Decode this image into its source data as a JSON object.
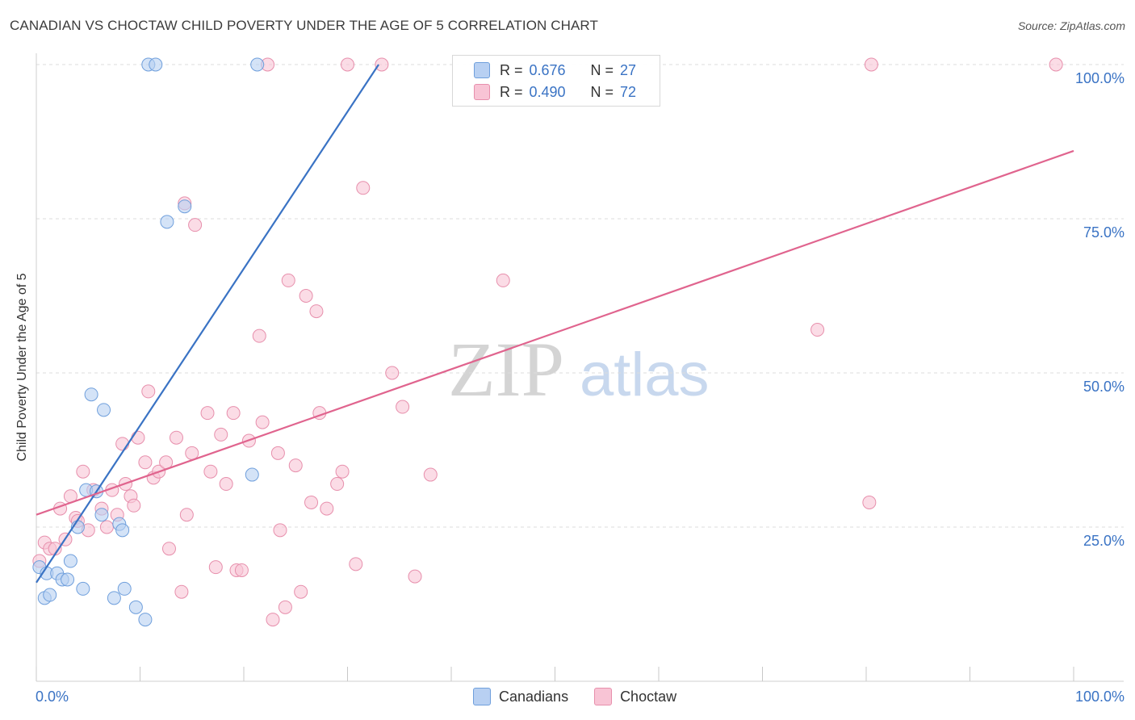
{
  "title": "CANADIAN VS CHOCTAW CHILD POVERTY UNDER THE AGE OF 5 CORRELATION CHART",
  "source": "Source: ZipAtlas.com",
  "watermark": {
    "zip": "ZIP",
    "atlas": "atlas"
  },
  "colors": {
    "canadian_fill": "#b8d0f2",
    "canadian_stroke": "#6f9fdc",
    "canadian_line": "#3a73c4",
    "choctaw_fill": "#f8c4d5",
    "choctaw_stroke": "#e78fac",
    "choctaw_line": "#e0648e",
    "axis_text": "#3a73c4",
    "grid": "#dcdcdc"
  },
  "legend": {
    "rows": [
      {
        "r_label": "R =",
        "r_value": "0.676",
        "n_label": "N =",
        "n_value": "27"
      },
      {
        "r_label": "R =",
        "r_value": "0.490",
        "n_label": "N =",
        "n_value": "72"
      }
    ],
    "series_names": [
      "Canadians",
      "Choctaw"
    ]
  },
  "chart_data": {
    "type": "scatter",
    "title": "CANADIAN VS CHOCTAW CHILD POVERTY UNDER THE AGE OF 5 CORRELATION CHART",
    "xlabel": "",
    "ylabel": "Child Poverty Under the Age of 5",
    "xlim": [
      0,
      100
    ],
    "ylim": [
      0,
      100
    ],
    "x_tick_labels": [
      "0.0%",
      "100.0%"
    ],
    "y_tick_labels": [
      "25.0%",
      "50.0%",
      "75.0%",
      "100.0%"
    ],
    "y_ticks": [
      25,
      50,
      75,
      100
    ],
    "grid": true,
    "series": [
      {
        "name": "Canadians",
        "R": 0.676,
        "N": 27,
        "trend": {
          "x0": 0,
          "y0": 16,
          "x1": 33,
          "y1": 100
        },
        "points": [
          [
            0.3,
            18.5
          ],
          [
            1,
            17.5
          ],
          [
            0.8,
            13.5
          ],
          [
            1.3,
            14
          ],
          [
            2,
            17.5
          ],
          [
            2.5,
            16.5
          ],
          [
            3,
            16.5
          ],
          [
            3.3,
            19.5
          ],
          [
            4,
            25
          ],
          [
            4.5,
            15
          ],
          [
            4.8,
            31
          ],
          [
            5.3,
            46.5
          ],
          [
            5.8,
            30.8
          ],
          [
            6.3,
            27
          ],
          [
            6.5,
            44
          ],
          [
            7.5,
            13.5
          ],
          [
            8,
            25.5
          ],
          [
            8.3,
            24.5
          ],
          [
            8.5,
            15
          ],
          [
            9.6,
            12
          ],
          [
            10.5,
            10
          ],
          [
            10.8,
            100
          ],
          [
            11.5,
            100
          ],
          [
            12.6,
            74.5
          ],
          [
            14.3,
            77
          ],
          [
            20.8,
            33.5
          ],
          [
            21.3,
            100
          ]
        ]
      },
      {
        "name": "Choctaw",
        "R": 0.49,
        "N": 72,
        "trend": {
          "x0": 0,
          "y0": 27,
          "x1": 100,
          "y1": 86
        },
        "points": [
          [
            0.3,
            19.5
          ],
          [
            0.8,
            22.5
          ],
          [
            1.3,
            21.5
          ],
          [
            1.8,
            21.5
          ],
          [
            2.3,
            28
          ],
          [
            2.8,
            23
          ],
          [
            3.3,
            30
          ],
          [
            3.8,
            26.5
          ],
          [
            4,
            26
          ],
          [
            4.5,
            34
          ],
          [
            5,
            24.5
          ],
          [
            5.5,
            31
          ],
          [
            6.3,
            28
          ],
          [
            6.8,
            25
          ],
          [
            7.3,
            31
          ],
          [
            7.8,
            27
          ],
          [
            8.3,
            38.5
          ],
          [
            8.6,
            32
          ],
          [
            9.1,
            30
          ],
          [
            9.4,
            28.5
          ],
          [
            9.8,
            39.5
          ],
          [
            10.5,
            35.5
          ],
          [
            10.8,
            47
          ],
          [
            11.3,
            33
          ],
          [
            11.8,
            34
          ],
          [
            12.5,
            35.5
          ],
          [
            12.8,
            21.5
          ],
          [
            13.5,
            39.5
          ],
          [
            14,
            14.5
          ],
          [
            14.3,
            77.5
          ],
          [
            14.5,
            27
          ],
          [
            15,
            37
          ],
          [
            15.3,
            74
          ],
          [
            16.5,
            43.5
          ],
          [
            16.8,
            34
          ],
          [
            17.3,
            18.5
          ],
          [
            17.8,
            40
          ],
          [
            18.3,
            32
          ],
          [
            19,
            43.5
          ],
          [
            19.3,
            18
          ],
          [
            19.8,
            18
          ],
          [
            20.5,
            39
          ],
          [
            21.5,
            56
          ],
          [
            21.8,
            42
          ],
          [
            22.8,
            10
          ],
          [
            23.3,
            37
          ],
          [
            23.5,
            24.5
          ],
          [
            24,
            12
          ],
          [
            24.3,
            65
          ],
          [
            25,
            35
          ],
          [
            25.5,
            14.5
          ],
          [
            26,
            62.5
          ],
          [
            26.5,
            29
          ],
          [
            27,
            60
          ],
          [
            27.3,
            43.5
          ],
          [
            28,
            28
          ],
          [
            29,
            32
          ],
          [
            29.5,
            34
          ],
          [
            30,
            100
          ],
          [
            30.8,
            19
          ],
          [
            31.5,
            80
          ],
          [
            33.3,
            100
          ],
          [
            34.3,
            50
          ],
          [
            35.3,
            44.5
          ],
          [
            36.5,
            17
          ],
          [
            38,
            33.5
          ],
          [
            22.3,
            100
          ],
          [
            45,
            65
          ],
          [
            75.3,
            57
          ],
          [
            80.5,
            100
          ],
          [
            80.3,
            29
          ],
          [
            98.3,
            100
          ]
        ]
      }
    ]
  }
}
